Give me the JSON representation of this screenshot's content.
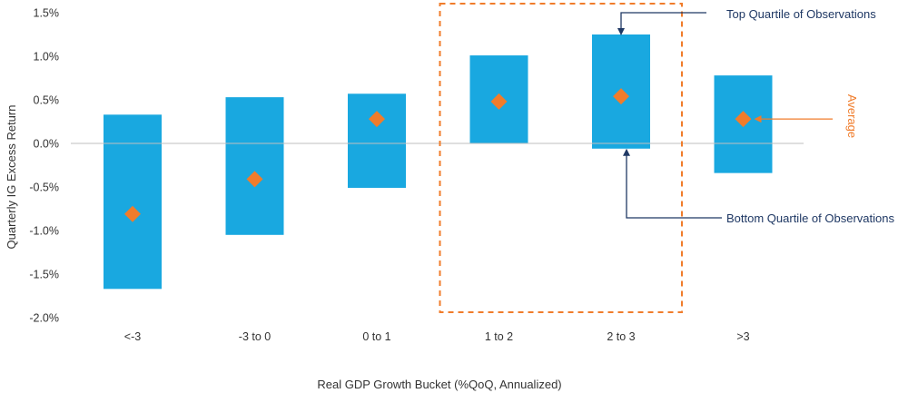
{
  "chart_data": {
    "type": "range-bar",
    "title": "",
    "xlabel": "Real GDP Growth Bucket (%QoQ, Annualized)",
    "ylabel": "Quarterly IG Excess Return",
    "ylim": [
      -2.0,
      1.5
    ],
    "yticks": [
      1.5,
      1.0,
      0.5,
      0.0,
      -0.5,
      -1.0,
      -1.5,
      -2.0
    ],
    "ytick_labels": [
      "1.5%",
      "1.0%",
      "0.5%",
      "0.0%",
      "-0.5%",
      "-1.0%",
      "-1.5%",
      "-2.0%"
    ],
    "categories": [
      "<-3",
      "-3 to 0",
      "0 to 1",
      "1 to 2",
      "2 to 3",
      ">3"
    ],
    "series": [
      {
        "name": "Top Quartile of Observations",
        "values": [
          0.33,
          0.53,
          0.57,
          1.01,
          1.25,
          0.78
        ]
      },
      {
        "name": "Bottom Quartile of Observations",
        "values": [
          -1.67,
          -1.05,
          -0.51,
          0.0,
          -0.06,
          -0.34
        ]
      },
      {
        "name": "Average",
        "values": [
          -0.81,
          -0.41,
          0.28,
          0.48,
          0.54,
          0.28
        ]
      }
    ],
    "highlight_categories": [
      "1 to 2",
      "2 to 3"
    ],
    "annotations": {
      "top_quartile": "Top Quartile of Observations",
      "bottom_quartile": "Bottom Quartile of Observations",
      "average": "Average"
    },
    "colors": {
      "bar": "#19a8e0",
      "marker": "#f07c2b",
      "highlight": "#f07c2b",
      "annotation_text": "#1f3864",
      "annotation_line": "#1f3864",
      "average_text": "#f07c2b",
      "axis": "#bfbfbf"
    }
  }
}
